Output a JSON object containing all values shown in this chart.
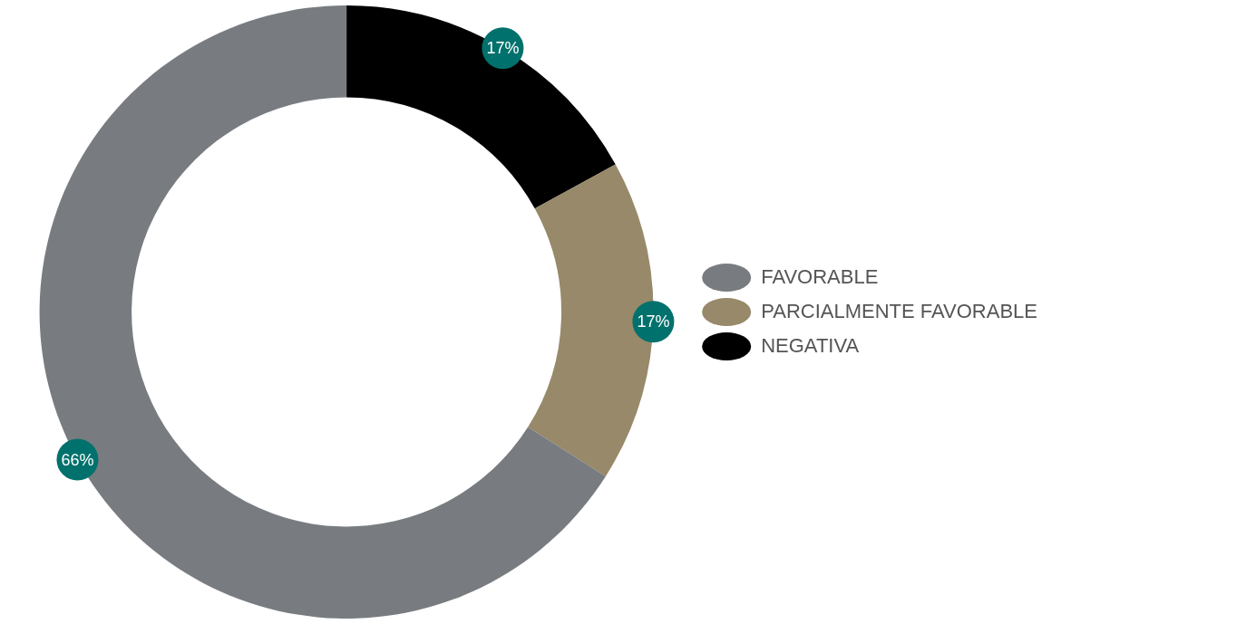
{
  "chart_data": {
    "type": "donut",
    "categories": [
      "NEGATIVA",
      "PARCIALMENTE FAVORABLE",
      "FAVORABLE"
    ],
    "values": [
      17,
      17,
      66
    ],
    "colors": [
      "#000000",
      "#978969",
      "#787c80"
    ],
    "value_labels": [
      "17%",
      "17%",
      "66%"
    ],
    "legend": "right"
  }
}
